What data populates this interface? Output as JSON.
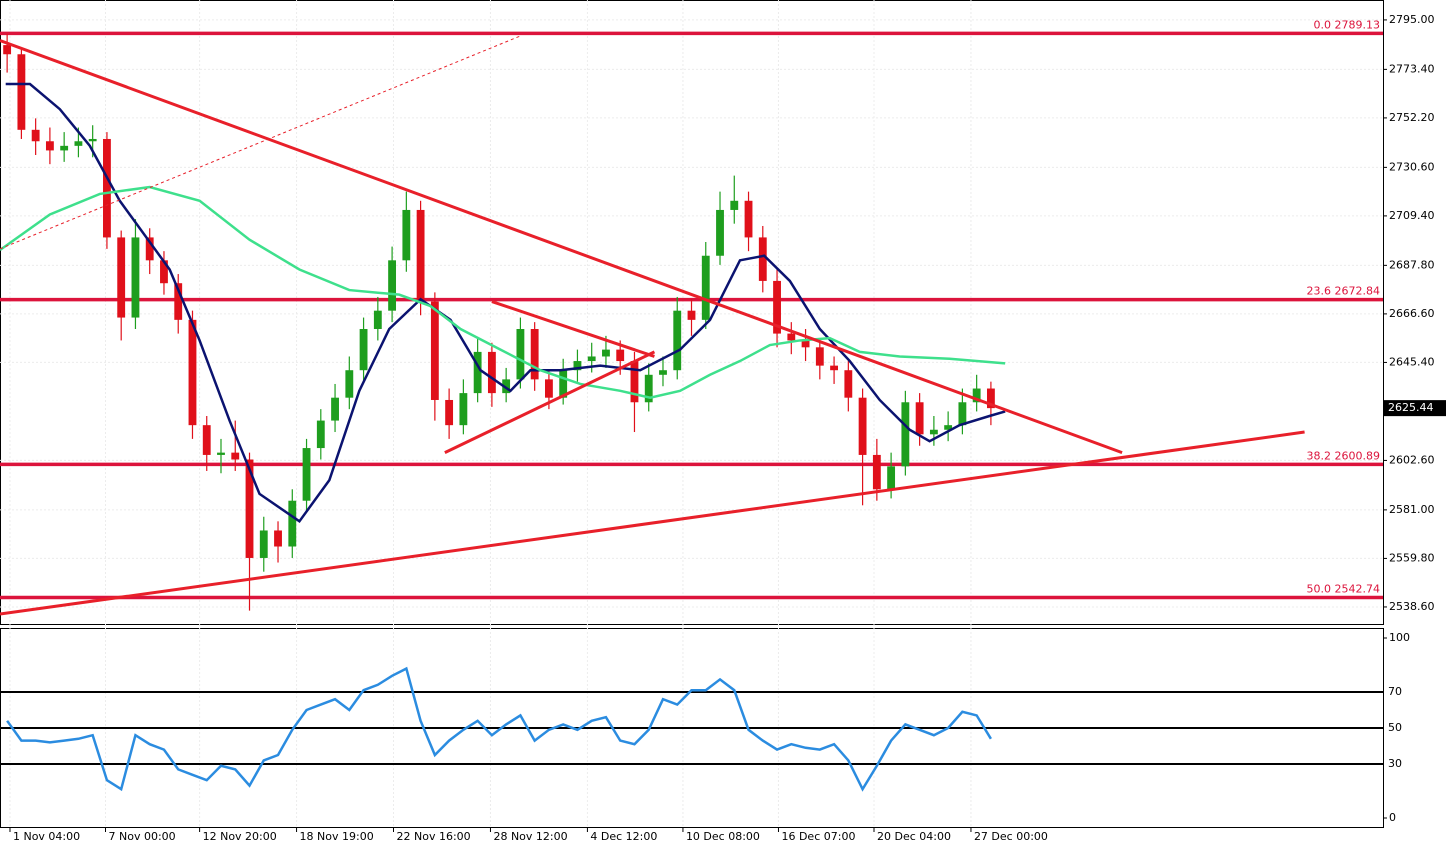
{
  "chart_data": [
    {
      "type": "candlestick",
      "candles": {
        "open": [
          2784,
          2780,
          2747,
          2742,
          2738,
          2740,
          2742,
          2743,
          2700,
          2665,
          2700,
          2690,
          2680,
          2664,
          2618,
          2605,
          2606,
          2603,
          2560,
          2572,
          2565,
          2585,
          2608,
          2620,
          2630,
          2642,
          2660,
          2668,
          2690,
          2712,
          2672,
          2629,
          2618,
          2632,
          2650,
          2632,
          2638,
          2660,
          2638,
          2630,
          2642,
          2646,
          2648,
          2651,
          2646,
          2628,
          2640,
          2642,
          2668,
          2664,
          2692,
          2712,
          2716,
          2700,
          2681,
          2658,
          2655,
          2652,
          2644,
          2642,
          2630,
          2605,
          2590,
          2600,
          2628,
          2614,
          2616,
          2618,
          2628,
          2634
        ],
        "high": [
          2789,
          2783,
          2752,
          2748,
          2746,
          2748,
          2749,
          2746,
          2703,
          2708,
          2704,
          2694,
          2684,
          2668,
          2622,
          2612,
          2620,
          2606,
          2578,
          2576,
          2590,
          2612,
          2625,
          2636,
          2648,
          2665,
          2674,
          2696,
          2720,
          2716,
          2676,
          2634,
          2638,
          2656,
          2654,
          2643,
          2665,
          2663,
          2642,
          2647,
          2651,
          2654,
          2657,
          2655,
          2650,
          2645,
          2648,
          2674,
          2673,
          2698,
          2720,
          2727,
          2720,
          2705,
          2686,
          2663,
          2660,
          2656,
          2648,
          2646,
          2634,
          2612,
          2606,
          2633,
          2632,
          2622,
          2624,
          2634,
          2640,
          2637
        ],
        "low": [
          2772,
          2743,
          2736,
          2732,
          2733,
          2735,
          2735,
          2695,
          2655,
          2660,
          2684,
          2675,
          2658,
          2612,
          2598,
          2597,
          2598,
          2537,
          2554,
          2558,
          2560,
          2580,
          2603,
          2615,
          2625,
          2637,
          2655,
          2663,
          2685,
          2666,
          2620,
          2612,
          2614,
          2628,
          2626,
          2628,
          2634,
          2633,
          2625,
          2627,
          2637,
          2641,
          2643,
          2640,
          2615,
          2624,
          2635,
          2638,
          2657,
          2660,
          2688,
          2706,
          2694,
          2676,
          2652,
          2649,
          2646,
          2638,
          2636,
          2624,
          2583,
          2585,
          2586,
          2596,
          2609,
          2609,
          2611,
          2614,
          2624,
          2618
        ],
        "close": [
          2780,
          2747,
          2742,
          2738,
          2740,
          2742,
          2743,
          2700,
          2665,
          2700,
          2690,
          2680,
          2664,
          2618,
          2605,
          2606,
          2603,
          2560,
          2572,
          2565,
          2585,
          2608,
          2620,
          2630,
          2642,
          2660,
          2668,
          2690,
          2712,
          2672,
          2629,
          2618,
          2632,
          2650,
          2632,
          2638,
          2660,
          2638,
          2630,
          2642,
          2646,
          2648,
          2651,
          2646,
          2628,
          2640,
          2642,
          2668,
          2664,
          2692,
          2712,
          2716,
          2700,
          2681,
          2658,
          2655,
          2652,
          2644,
          2642,
          2630,
          2605,
          2590,
          2600,
          2628,
          2614,
          2616,
          2618,
          2628,
          2634,
          2625.44
        ]
      },
      "up_color": "#1e9e1e",
      "down_color": "#e0101a",
      "xlim": [
        -0.5,
        96.5
      ],
      "ylim": [
        2532.9,
        2803.7
      ],
      "yticks": [
        {
          "value": 2795,
          "label": "2795.00"
        },
        {
          "value": 2773.4,
          "label": "2773.40"
        },
        {
          "value": 2752.2,
          "label": "2752.20"
        },
        {
          "value": 2730.6,
          "label": "2730.60"
        },
        {
          "value": 2709.4,
          "label": "2709.40"
        },
        {
          "value": 2687.8,
          "label": "2687.80"
        },
        {
          "value": 2666.6,
          "label": "2666.60"
        },
        {
          "value": 2645.4,
          "label": "2645.40"
        },
        {
          "value": 2602.6,
          "label": "2602.60"
        },
        {
          "value": 2581,
          "label": "2581.00"
        },
        {
          "value": 2559.8,
          "label": "2559.80"
        },
        {
          "value": 2538.6,
          "label": "2538.60"
        }
      ],
      "xticks": [
        {
          "value": 0.2,
          "label": "1 Nov 04:00"
        },
        {
          "value": 6.9,
          "label": "7 Nov 00:00"
        },
        {
          "value": 13.5,
          "label": "12 Nov 20:00"
        },
        {
          "value": 20.3,
          "label": "18 Nov 19:00"
        },
        {
          "value": 27.1,
          "label": "22 Nov 16:00"
        },
        {
          "value": 33.9,
          "label": "28 Nov 12:00"
        },
        {
          "value": 40.7,
          "label": "4 Dec 12:00"
        },
        {
          "value": 47.4,
          "label": "10 Dec 08:00"
        },
        {
          "value": 54.1,
          "label": "16 Dec 07:00"
        },
        {
          "value": 60.8,
          "label": "20 Dec 04:00"
        },
        {
          "value": 67.6,
          "label": "27 Dec 00:00"
        }
      ],
      "grid": true,
      "series": [
        {
          "color": "#0b1370",
          "x": [
            -0.1,
            1.6,
            3.7,
            5.8,
            7.9,
            11.4,
            13.5,
            15.6,
            17.7,
            20.5,
            22.6,
            24.7,
            26.8,
            29.0,
            31.1,
            33.2,
            35.3,
            36.7,
            38.8,
            41.6,
            44.4,
            47.2,
            49.3,
            51.4,
            53.1,
            54.9,
            57.0,
            59.1,
            61.2,
            63.3,
            64.7,
            66.8,
            68.9,
            70.0
          ],
          "values": [
            2767,
            2767,
            2756,
            2740,
            2716,
            2686,
            2655,
            2620,
            2588,
            2576,
            2594,
            2633,
            2660,
            2673,
            2664,
            2642,
            2633,
            2642,
            2642,
            2644,
            2642,
            2651,
            2664,
            2690,
            2692,
            2681,
            2660,
            2646,
            2629,
            2616,
            2611,
            2618,
            2622,
            2624
          ]
        },
        {
          "color": "#3ee08c",
          "x": [
            -0.5,
            3.0,
            6.5,
            10.0,
            13.5,
            17.0,
            20.5,
            24.0,
            27.5,
            29.7,
            31.8,
            34.6,
            37.4,
            40.2,
            43.0,
            45.1,
            47.2,
            49.3,
            51.4,
            53.5,
            55.6,
            57.7,
            59.8,
            62.6,
            66.1,
            70.0
          ],
          "values": [
            2694.5,
            2710,
            2719,
            2722,
            2716,
            2699,
            2686,
            2677,
            2675,
            2670,
            2660,
            2651,
            2642,
            2636,
            2633,
            2630,
            2633,
            2640,
            2646,
            2653,
            2655,
            2656,
            2650,
            2648,
            2647,
            2645
          ]
        }
      ],
      "trendlines": [
        {
          "x": [
            -0.5,
            78.2
          ],
          "y": [
            2786,
            2606
          ],
          "color": "#e8202a",
          "dashed": false
        },
        {
          "x": [
            -0.5,
            91.0
          ],
          "y": [
            2535.5,
            2615
          ],
          "color": "#e8202a",
          "dashed": false
        },
        {
          "x": [
            34.0,
            45.4
          ],
          "y": [
            2672,
            2648
          ],
          "color": "#e8202a",
          "dashed": false
        },
        {
          "x": [
            30.7,
            45.4
          ],
          "y": [
            2606,
            2650
          ],
          "color": "#e8202a",
          "dashed": false
        },
        {
          "x": [
            -0.5,
            36.0
          ],
          "y": [
            2695,
            2788
          ],
          "color": "#e8202a",
          "dashed": true
        }
      ],
      "fib_color": "#dc143c",
      "fib_levels": [
        {
          "value": 2789.13,
          "label": "0.0 2789.13"
        },
        {
          "value": 2672.84,
          "label": "23.6 2672.84"
        },
        {
          "value": 2600.89,
          "label": "38.2 2600.89"
        },
        {
          "value": 2542.74,
          "label": "50.0 2542.74"
        }
      ]
    },
    {
      "type": "line",
      "color": "#2b8ce0",
      "values": [
        54,
        43,
        43,
        42,
        43,
        44,
        46,
        21,
        16,
        46,
        41,
        38,
        27,
        24,
        21,
        29,
        27,
        18,
        32,
        35,
        49,
        60,
        63,
        66,
        60,
        71,
        74,
        79,
        83,
        54,
        35,
        43,
        49,
        54,
        46,
        52,
        57,
        43,
        49,
        52,
        49,
        54,
        56,
        43,
        41,
        49,
        66,
        63,
        71,
        71,
        77,
        71,
        49,
        43,
        38,
        41,
        39,
        38,
        41,
        32,
        16,
        29,
        43,
        52,
        49,
        46,
        50,
        59,
        57,
        44
      ],
      "ylim": [
        0,
        100
      ],
      "yticks": [
        0,
        100
      ],
      "levels": [
        30,
        50,
        70
      ]
    }
  ]
}
